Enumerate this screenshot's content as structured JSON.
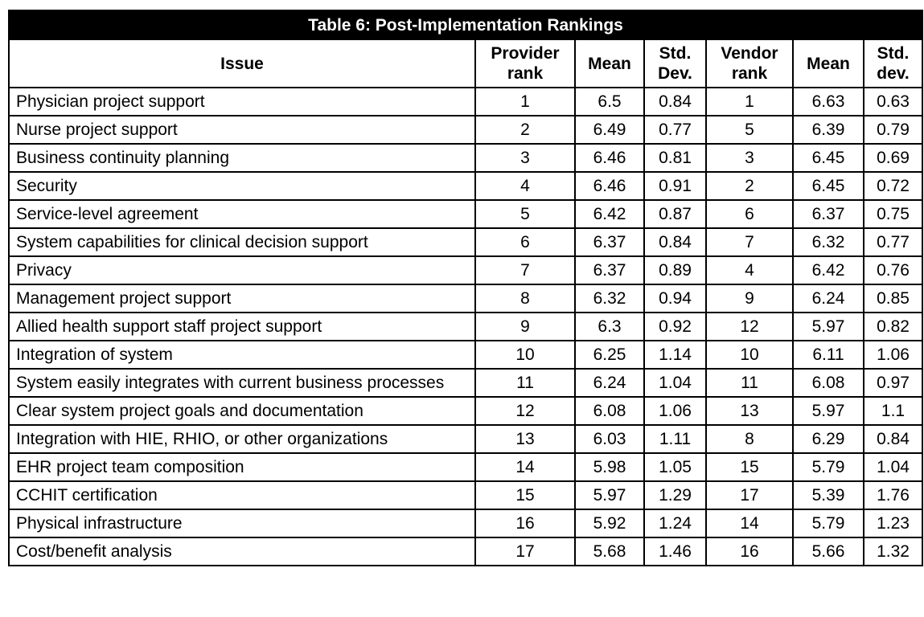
{
  "table": {
    "title": "Table 6: Post-Implementation Rankings",
    "columns": [
      "Issue",
      "Provider rank",
      "Mean",
      "Std. Dev.",
      "Vendor rank",
      "Mean",
      "Std. dev."
    ],
    "rows": [
      [
        "Physician project support",
        "1",
        "6.5",
        "0.84",
        "1",
        "6.63",
        "0.63"
      ],
      [
        "Nurse project support",
        "2",
        "6.49",
        "0.77",
        "5",
        "6.39",
        "0.79"
      ],
      [
        "Business continuity planning",
        "3",
        "6.46",
        "0.81",
        "3",
        "6.45",
        "0.69"
      ],
      [
        "Security",
        "4",
        "6.46",
        "0.91",
        "2",
        "6.45",
        "0.72"
      ],
      [
        "Service-level agreement",
        "5",
        "6.42",
        "0.87",
        "6",
        "6.37",
        "0.75"
      ],
      [
        "System capabilities for clinical decision support",
        "6",
        "6.37",
        "0.84",
        "7",
        "6.32",
        "0.77"
      ],
      [
        "Privacy",
        "7",
        "6.37",
        "0.89",
        "4",
        "6.42",
        "0.76"
      ],
      [
        "Management project support",
        "8",
        "6.32",
        "0.94",
        "9",
        "6.24",
        "0.85"
      ],
      [
        "Allied health support staff project support",
        "9",
        "6.3",
        "0.92",
        "12",
        "5.97",
        "0.82"
      ],
      [
        "Integration of system",
        "10",
        "6.25",
        "1.14",
        "10",
        "6.11",
        "1.06"
      ],
      [
        "System easily integrates with current business processes",
        "11",
        "6.24",
        "1.04",
        "11",
        "6.08",
        "0.97"
      ],
      [
        "Clear system project goals and documentation",
        "12",
        "6.08",
        "1.06",
        "13",
        "5.97",
        "1.1"
      ],
      [
        "Integration with HIE, RHIO, or other organizations",
        "13",
        "6.03",
        "1.11",
        "8",
        "6.29",
        "0.84"
      ],
      [
        "EHR project team composition",
        "14",
        "5.98",
        "1.05",
        "15",
        "5.79",
        "1.04"
      ],
      [
        "CCHIT certification",
        "15",
        "5.97",
        "1.29",
        "17",
        "5.39",
        "1.76"
      ],
      [
        "Physical infrastructure",
        "16",
        "5.92",
        "1.24",
        "14",
        "5.79",
        "1.23"
      ],
      [
        "Cost/benefit analysis",
        "17",
        "5.68",
        "1.46",
        "16",
        "5.66",
        "1.32"
      ]
    ]
  }
}
